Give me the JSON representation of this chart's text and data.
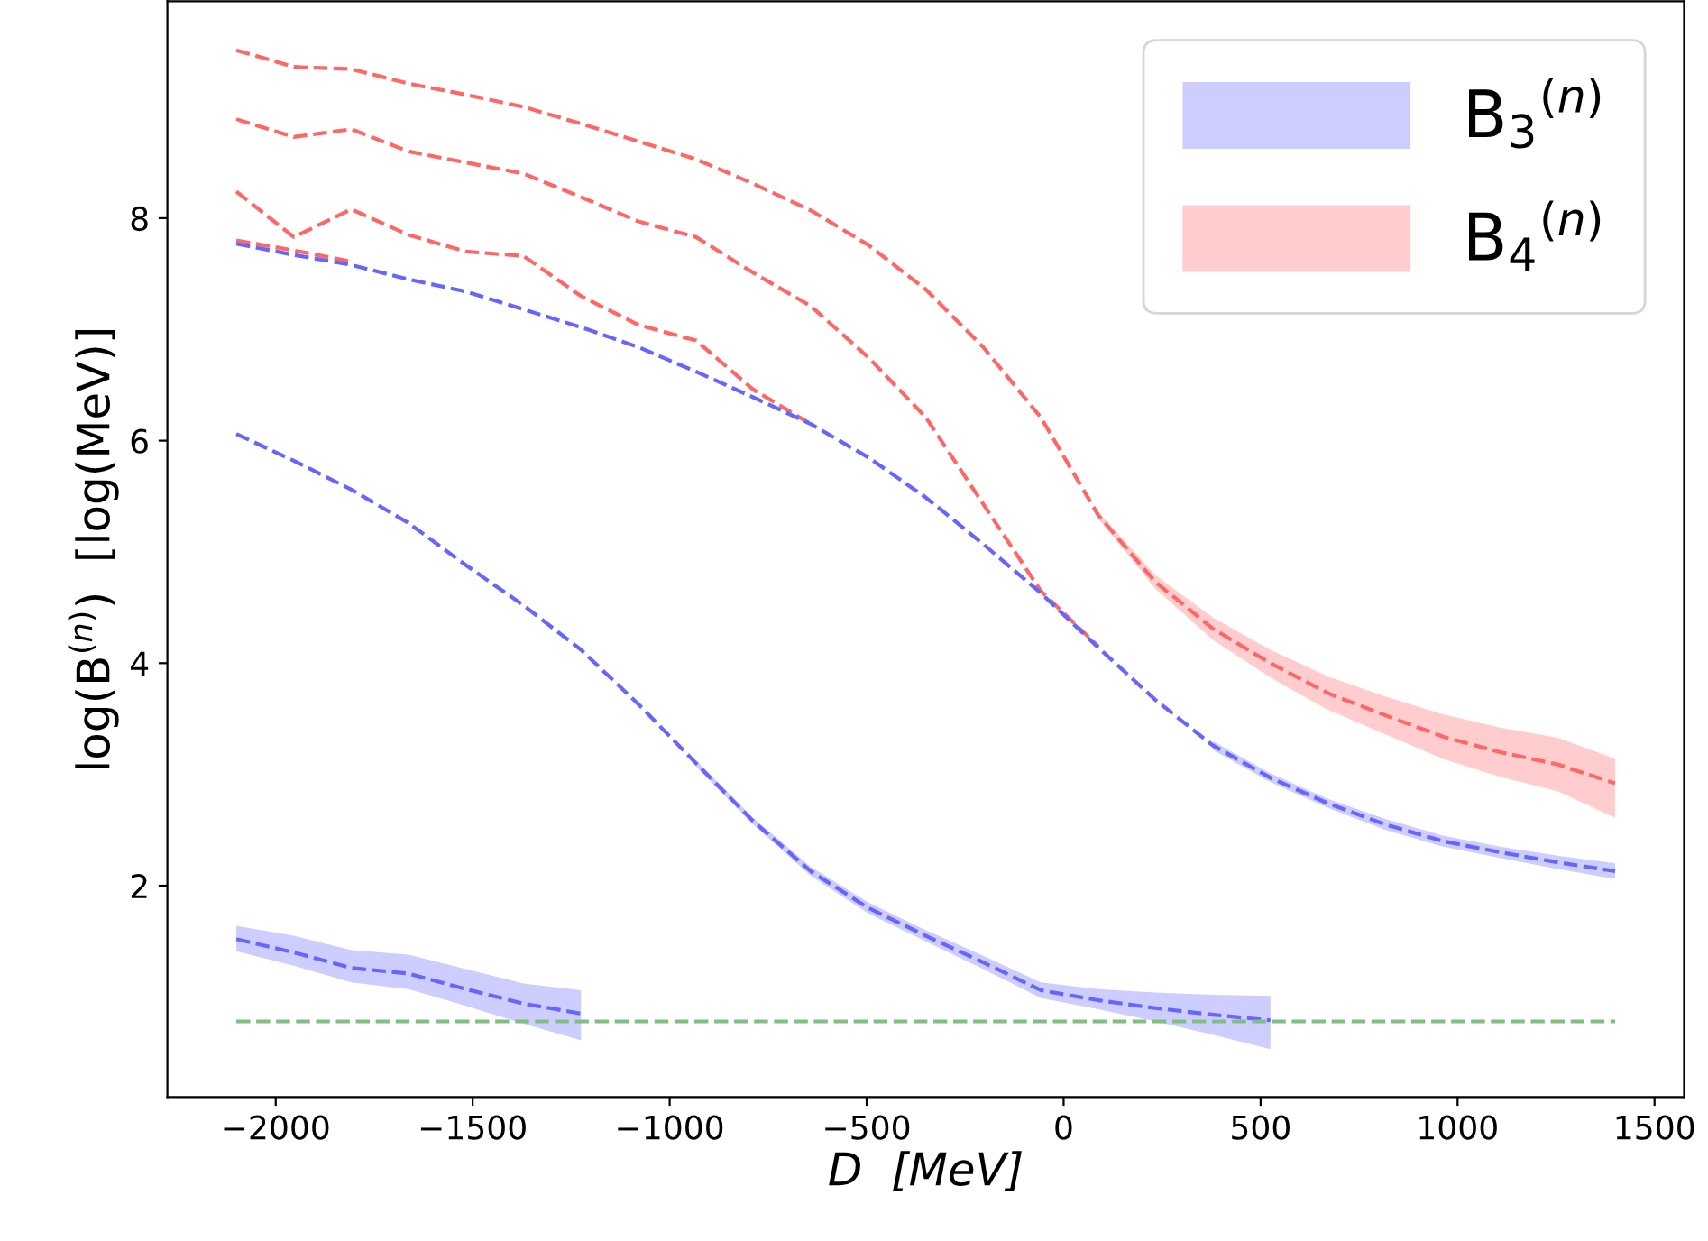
{
  "chart_data": {
    "type": "line",
    "xlabel": "D  [MeV]",
    "ylabel": "log(B$^{(n)}$)  [log(MeV)]",
    "xlim": [
      -2275,
      1575
    ],
    "xticks": [
      {
        "value": -2000,
        "label": "−2000"
      },
      {
        "value": -1500,
        "label": "−1500"
      },
      {
        "value": -1000,
        "label": "−1000"
      },
      {
        "value": -500,
        "label": "−500"
      },
      0,
      500,
      1000,
      1500
    ],
    "ylim": [
      0.1,
      9.95
    ],
    "yticks": [
      2,
      4,
      6,
      8
    ],
    "line_style": "dashed",
    "legend": "top right",
    "grid": false,
    "series": [
      {
        "color": "#6666ff",
        "x": [
          -2100,
          -1954,
          -1808,
          -1663,
          -1517,
          -1371,
          -1225,
          -1079,
          -933,
          -788,
          -642,
          -496,
          -350,
          -204,
          -58,
          88,
          233,
          379,
          525
        ],
        "values": [
          6.06,
          5.82,
          5.56,
          5.26,
          4.88,
          4.52,
          4.12,
          3.63,
          3.1,
          2.58,
          2.13,
          1.8,
          1.55,
          1.31,
          1.06,
          0.97,
          0.9,
          0.84,
          0.79
        ],
        "name": "B$_{3}$$^{(n)}$",
        "lower": [
          null,
          null,
          null,
          null,
          null,
          null,
          null,
          null,
          3.07,
          2.55,
          2.09,
          1.75,
          1.5,
          1.25,
          0.99,
          0.89,
          0.78,
          0.66,
          0.53
        ],
        "upper": [
          null,
          null,
          null,
          null,
          null,
          null,
          null,
          null,
          3.13,
          2.61,
          2.17,
          1.85,
          1.6,
          1.37,
          1.13,
          1.07,
          1.04,
          1.02,
          1.01
        ]
      },
      {
        "color": "#ff6666",
        "x": [
          -2100,
          -1954,
          -1808,
          -1663,
          -1517,
          -1371,
          -1225,
          -1079,
          -933,
          -788,
          -642,
          -496,
          -350,
          -204,
          -58,
          88,
          233,
          379,
          525,
          671,
          817,
          963,
          1108,
          1254,
          1400
        ],
        "values": [
          9.51,
          9.36,
          9.34,
          9.21,
          9.11,
          9.0,
          8.85,
          8.69,
          8.53,
          8.31,
          8.07,
          7.76,
          7.36,
          6.84,
          6.21,
          5.33,
          4.73,
          4.31,
          4.0,
          3.73,
          3.53,
          3.34,
          3.2,
          3.09,
          2.92
        ],
        "name": "B$_{4}$$^{(n)}$",
        "lower": [
          null,
          null,
          null,
          null,
          null,
          null,
          null,
          null,
          null,
          null,
          null,
          null,
          null,
          null,
          null,
          5.3,
          4.67,
          4.21,
          3.87,
          3.58,
          3.36,
          3.14,
          2.98,
          2.85,
          2.61
        ],
        "upper": [
          null,
          null,
          null,
          null,
          null,
          null,
          null,
          null,
          null,
          null,
          null,
          null,
          null,
          null,
          null,
          5.36,
          4.79,
          4.41,
          4.12,
          3.88,
          3.7,
          3.54,
          3.42,
          3.33,
          3.14
        ]
      },
      {
        "color": "#ff6666",
        "x": [
          -2100,
          -1954,
          -1808,
          -1663,
          -1517,
          -1371,
          -1225,
          -1079,
          -933,
          -788,
          -642,
          -496,
          -350,
          -204,
          -58,
          88
        ],
        "values": [
          8.89,
          8.73,
          8.8,
          8.6,
          8.5,
          8.4,
          8.19,
          7.97,
          7.83,
          7.51,
          7.21,
          6.75,
          6.21,
          5.43,
          4.65,
          4.15
        ]
      },
      {
        "color": "#ff6666",
        "x": [
          -2100,
          -1954,
          -1808,
          -1663,
          -1517,
          -1371,
          -1225,
          -1079,
          -933,
          -788,
          -642
        ],
        "values": [
          8.24,
          7.83,
          8.08,
          7.85,
          7.7,
          7.66,
          7.3,
          7.04,
          6.9,
          6.46,
          6.15
        ]
      },
      {
        "color": "#ff6666",
        "x": [
          -2100,
          -1954,
          -1808
        ],
        "values": [
          7.8,
          7.71,
          7.61
        ]
      },
      {
        "color": "#6666ff",
        "x": [
          -2100,
          -1954,
          -1808,
          -1663,
          -1517,
          -1371,
          -1225,
          -1079,
          -933,
          -788,
          -642,
          -496,
          -350,
          -204,
          -58,
          88,
          233,
          379,
          525,
          671,
          817,
          963,
          1108,
          1254,
          1400
        ],
        "values": [
          7.77,
          7.67,
          7.58,
          7.45,
          7.34,
          7.18,
          7.02,
          6.84,
          6.62,
          6.39,
          6.15,
          5.85,
          5.49,
          5.07,
          4.63,
          4.14,
          3.67,
          3.26,
          2.97,
          2.74,
          2.55,
          2.4,
          2.3,
          2.21,
          2.13
        ],
        "lower": [
          null,
          null,
          null,
          null,
          null,
          null,
          null,
          null,
          null,
          null,
          null,
          null,
          null,
          null,
          null,
          null,
          null,
          3.22,
          2.93,
          2.7,
          2.5,
          2.35,
          2.25,
          2.15,
          2.06
        ],
        "upper": [
          null,
          null,
          null,
          null,
          null,
          null,
          null,
          null,
          null,
          null,
          null,
          null,
          null,
          null,
          null,
          null,
          null,
          3.3,
          3.01,
          2.78,
          2.6,
          2.45,
          2.35,
          2.27,
          2.2
        ]
      },
      {
        "color": "#6666ff",
        "x": [
          -2100,
          -1954,
          -1808,
          -1663,
          -1517,
          -1371,
          -1225
        ],
        "values": [
          1.52,
          1.4,
          1.26,
          1.21,
          1.07,
          0.94,
          0.85
        ],
        "lower": [
          1.41,
          1.28,
          1.13,
          1.07,
          0.92,
          0.76,
          0.61
        ],
        "upper": [
          1.64,
          1.55,
          1.42,
          1.38,
          1.25,
          1.12,
          1.06
        ]
      },
      {
        "color": "#7fbf7f",
        "x": [
          -2100,
          1400
        ],
        "values": [
          0.78,
          0.78
        ]
      }
    ]
  }
}
